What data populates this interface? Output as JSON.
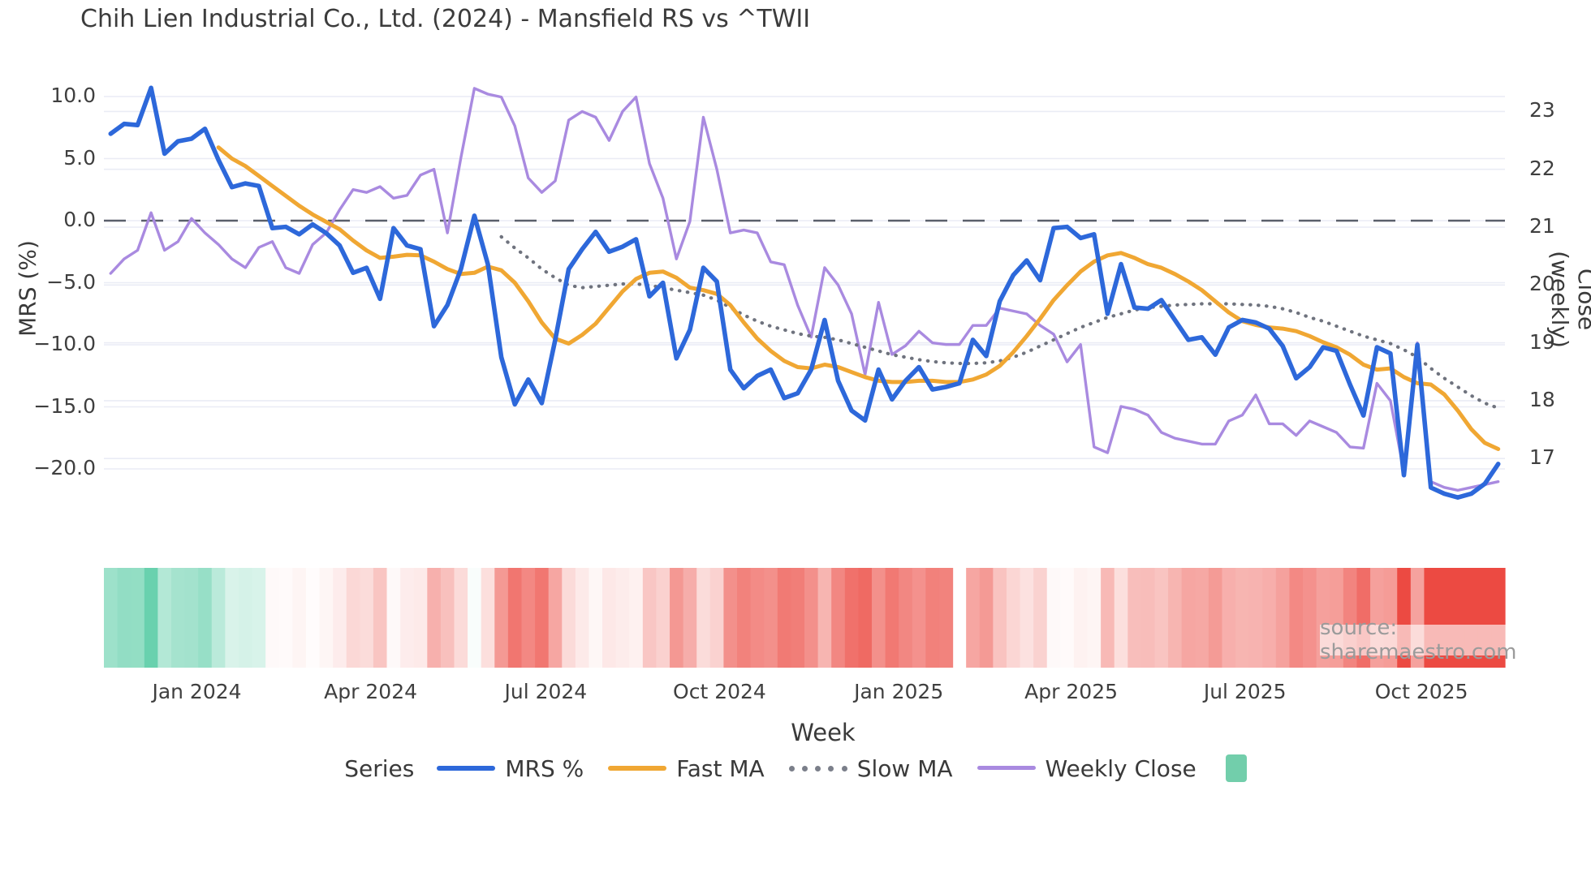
{
  "title": "Chih Lien Industrial Co., Ltd. (2024) - Mansfield RS vs ^TWII",
  "source_text": "source: sharemaestro.com",
  "axes": {
    "left_title": "MRS (%)",
    "right_title": "Close (weekly)",
    "x_title": "Week",
    "left_ticks": [
      10.0,
      5.0,
      0.0,
      -5.0,
      -10.0,
      -15.0,
      -20.0
    ],
    "right_ticks": [
      23,
      22,
      21,
      20,
      19,
      18,
      17
    ],
    "x_ticks": [
      {
        "label": "Jan 2024",
        "week": 6.4
      },
      {
        "label": "Apr 2024",
        "week": 19.3
      },
      {
        "label": "Jul 2024",
        "week": 32.3
      },
      {
        "label": "Oct 2024",
        "week": 45.2
      },
      {
        "label": "Jan 2025",
        "week": 58.5
      },
      {
        "label": "Apr 2025",
        "week": 71.3
      },
      {
        "label": "Jul 2025",
        "week": 84.2
      },
      {
        "label": "Oct 2025",
        "week": 97.3
      }
    ]
  },
  "legend": {
    "title": "Series",
    "items": [
      {
        "label": "MRS %",
        "color": "#2d68da",
        "style": "solid"
      },
      {
        "label": "Fast MA",
        "color": "#f0a733",
        "style": "solid"
      },
      {
        "label": "Slow MA",
        "color": "#7b7f8a",
        "style": "dotted"
      },
      {
        "label": "Weekly Close",
        "color": "#a98ae0",
        "style": "solid"
      }
    ],
    "heat_swatch_color": "#72ceab"
  },
  "colors": {
    "mrs": "#2d68da",
    "fast_ma": "#f0a733",
    "slow_ma": "#6f737e",
    "weekly_close": "#a98ae0",
    "zero_line": "#5a5f6b",
    "gridline": "#eaecf5",
    "heat_green_max": "#50c9a0",
    "heat_red_max": "#ec4a42"
  },
  "chart_data": {
    "type": "line",
    "title": "Chih Lien Industrial Co., Ltd. (2024) - Mansfield RS vs ^TWII",
    "xlabel": "Week",
    "ylabel_left": "MRS (%)",
    "ylabel_right": "Close (weekly)",
    "ylim_left": [
      -24,
      12
    ],
    "ylim_right": [
      16.2,
      23.6
    ],
    "x_unit": "week_index",
    "n_weeks": 104,
    "heatmap_gap_week_index": 63,
    "series": [
      {
        "name": "MRS %",
        "axis": "left",
        "values": [
          7.0,
          7.8,
          7.7,
          10.7,
          5.4,
          6.4,
          6.6,
          7.4,
          4.9,
          2.7,
          3.0,
          2.8,
          -0.6,
          -0.5,
          -1.1,
          -0.3,
          -1.0,
          -2.0,
          -4.2,
          -3.8,
          -6.3,
          -0.6,
          -2.0,
          -2.3,
          -8.5,
          -6.8,
          -3.9,
          0.4,
          -3.5,
          -11.0,
          -14.8,
          -12.8,
          -14.7,
          -9.6,
          -3.9,
          -2.3,
          -0.9,
          -2.5,
          -2.1,
          -1.5,
          -6.1,
          -5.0,
          -11.1,
          -8.8,
          -3.8,
          -4.9,
          -12.0,
          -13.5,
          -12.5,
          -12.0,
          -14.3,
          -13.9,
          -12.0,
          -8.0,
          -12.9,
          -15.3,
          -16.1,
          -12.0,
          -14.4,
          -12.9,
          -11.8,
          -13.6,
          -13.4,
          -13.1,
          -9.6,
          -10.9,
          -6.5,
          -4.4,
          -3.2,
          -4.8,
          -0.6,
          -0.5,
          -1.4,
          -1.1,
          -7.5,
          -3.5,
          -7.0,
          -7.1,
          -6.4,
          -8.0,
          -9.6,
          -9.4,
          -10.8,
          -8.6,
          -8.0,
          -8.2,
          -8.7,
          -10.1,
          -12.7,
          -11.8,
          -10.2,
          -10.5,
          -13.2,
          -15.7,
          -10.2,
          -10.7,
          -20.5,
          -10.0,
          -21.5,
          -22.0,
          -22.3,
          -22.0,
          -21.2,
          -19.6
        ]
      },
      {
        "name": "Fast MA",
        "axis": "left",
        "values": [
          null,
          null,
          null,
          null,
          null,
          null,
          null,
          null,
          5.9,
          5.0,
          4.4,
          3.6,
          2.8,
          2.0,
          1.2,
          0.5,
          -0.1,
          -0.7,
          -1.6,
          -2.4,
          -3.0,
          -2.9,
          -2.75,
          -2.8,
          -3.3,
          -3.9,
          -4.3,
          -4.2,
          -3.7,
          -4.0,
          -5.0,
          -6.5,
          -8.2,
          -9.5,
          -9.9,
          -9.2,
          -8.3,
          -7.0,
          -5.7,
          -4.7,
          -4.2,
          -4.1,
          -4.6,
          -5.4,
          -5.6,
          -5.9,
          -6.8,
          -8.2,
          -9.5,
          -10.5,
          -11.3,
          -11.8,
          -11.9,
          -11.6,
          -11.8,
          -12.2,
          -12.6,
          -12.9,
          -13.0,
          -13.0,
          -12.9,
          -12.9,
          -13.0,
          -13.0,
          -12.8,
          -12.4,
          -11.7,
          -10.6,
          -9.3,
          -7.9,
          -6.4,
          -5.2,
          -4.1,
          -3.3,
          -2.8,
          -2.6,
          -3.0,
          -3.5,
          -3.8,
          -4.3,
          -4.9,
          -5.6,
          -6.5,
          -7.4,
          -8.1,
          -8.4,
          -8.6,
          -8.7,
          -8.9,
          -9.3,
          -9.8,
          -10.2,
          -10.8,
          -11.6,
          -12.0,
          -11.9,
          -12.6,
          -13.1,
          -13.2,
          -14.0,
          -15.3,
          -16.8,
          -17.9,
          -18.4
        ]
      },
      {
        "name": "Slow MA",
        "axis": "left",
        "values": [
          null,
          null,
          null,
          null,
          null,
          null,
          null,
          null,
          null,
          null,
          null,
          null,
          null,
          null,
          null,
          null,
          null,
          null,
          null,
          null,
          null,
          null,
          null,
          null,
          null,
          null,
          null,
          null,
          null,
          -1.3,
          -2.2,
          -3.0,
          -3.9,
          -4.6,
          -5.2,
          -5.4,
          -5.3,
          -5.2,
          -5.1,
          -5.1,
          -5.2,
          -5.4,
          -5.6,
          -5.8,
          -6.0,
          -6.4,
          -7.0,
          -7.6,
          -8.1,
          -8.5,
          -8.8,
          -9.1,
          -9.3,
          -9.4,
          -9.6,
          -9.9,
          -10.2,
          -10.5,
          -10.8,
          -11.0,
          -11.2,
          -11.35,
          -11.45,
          -11.5,
          -11.5,
          -11.45,
          -11.3,
          -11.0,
          -10.6,
          -10.1,
          -9.6,
          -9.1,
          -8.6,
          -8.2,
          -7.8,
          -7.5,
          -7.2,
          -7.0,
          -6.9,
          -6.8,
          -6.75,
          -6.7,
          -6.7,
          -6.7,
          -6.75,
          -6.8,
          -6.9,
          -7.1,
          -7.4,
          -7.8,
          -8.1,
          -8.5,
          -8.9,
          -9.3,
          -9.6,
          -9.9,
          -10.4,
          -11.0,
          -11.9,
          -12.7,
          -13.4,
          -14.1,
          -14.7,
          -15.1
        ]
      },
      {
        "name": "Weekly Close",
        "axis": "right",
        "values": [
          20.2,
          20.45,
          20.6,
          21.25,
          20.6,
          20.75,
          21.15,
          20.9,
          20.7,
          20.45,
          20.3,
          20.65,
          20.75,
          20.3,
          20.2,
          20.7,
          20.9,
          21.3,
          21.65,
          21.6,
          21.7,
          21.5,
          21.55,
          21.9,
          22.0,
          20.9,
          22.2,
          23.4,
          23.3,
          23.25,
          22.75,
          21.85,
          21.6,
          21.8,
          22.85,
          23.0,
          22.9,
          22.5,
          23.0,
          23.25,
          22.1,
          21.5,
          20.45,
          21.1,
          22.9,
          22.0,
          20.9,
          20.95,
          20.9,
          20.4,
          20.35,
          19.65,
          19.1,
          20.3,
          20.0,
          19.5,
          18.45,
          19.7,
          18.8,
          18.95,
          19.2,
          19.0,
          18.97,
          18.97,
          19.3,
          19.3,
          19.6,
          19.55,
          19.5,
          19.3,
          19.15,
          18.67,
          18.97,
          17.2,
          17.1,
          17.9,
          17.85,
          17.75,
          17.45,
          17.35,
          17.3,
          17.25,
          17.25,
          17.65,
          17.75,
          18.1,
          17.6,
          17.6,
          17.4,
          17.65,
          17.55,
          17.45,
          17.2,
          17.18,
          18.3,
          18.0,
          16.77,
          19.0,
          16.6,
          16.5,
          16.45,
          16.5,
          16.55,
          16.6
        ]
      },
      {
        "name": "MRS heat strip",
        "type": "heatmap",
        "note": "color-coded band of MRS % values, green positive to red negative, one cell per week, blank cell at gap week"
      }
    ]
  }
}
